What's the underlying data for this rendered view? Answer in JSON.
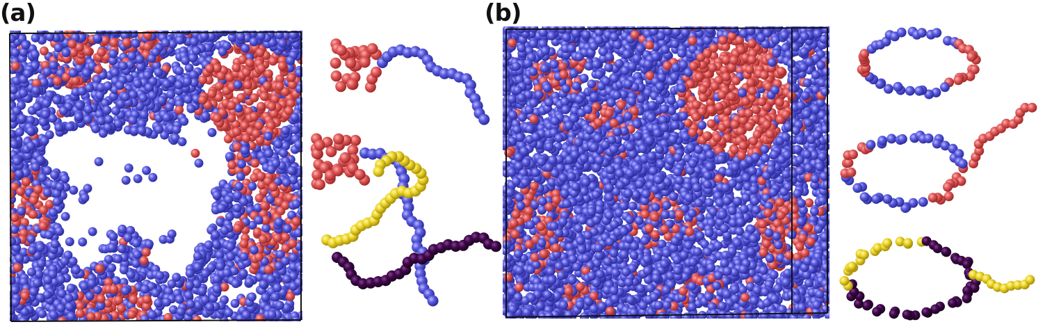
{
  "panels": [
    {
      "label": "(a)"
    },
    {
      "label": "(b)"
    }
  ],
  "colors": {
    "blue": "#5b5ce0",
    "red": "#e25a5a",
    "yellow": "#eed62a",
    "dark_purple": "#3f0a4a",
    "box_edge": "#111111",
    "background": "#ffffff"
  }
}
